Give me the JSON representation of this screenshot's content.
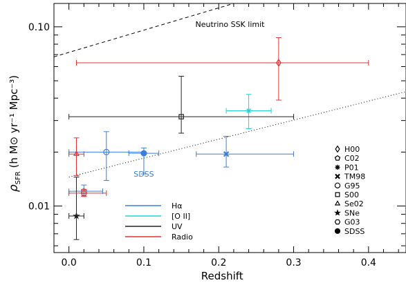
{
  "chart_data": {
    "type": "scatter",
    "xlabel": "Redshift",
    "ylabel_main": "ρ",
    "ylabel_sub": "SFR",
    "ylabel_units": " (h M⊙ yr⁻¹ Mpc⁻³)",
    "xlim": [
      -0.02,
      0.45
    ],
    "ylim": [
      0.0055,
      0.135
    ],
    "yscale": "log",
    "x_ticks": [
      {
        "value": 0.0,
        "label": "0.0"
      },
      {
        "value": 0.1,
        "label": "0.1"
      },
      {
        "value": 0.2,
        "label": "0.2"
      },
      {
        "value": 0.3,
        "label": "0.3"
      },
      {
        "value": 0.4,
        "label": "0.4"
      }
    ],
    "y_ticks": [
      {
        "value": 0.01,
        "label": "0.01"
      },
      {
        "value": 0.1,
        "label": "0.10"
      }
    ],
    "colors": {
      "Hα": "#3b7ddd",
      "[O II]": "#22d3d3",
      "UV": "#222222",
      "Radio": "#e23030"
    },
    "tracer_legend": [
      {
        "label": "Hα",
        "tracer": "Hα"
      },
      {
        "label": "[O II]",
        "tracer": "[O II]"
      },
      {
        "label": "UV",
        "tracer": "UV"
      },
      {
        "label": "Radio",
        "tracer": "Radio"
      }
    ],
    "symbol_legend": [
      {
        "label": "H00",
        "symbol": "diamond"
      },
      {
        "label": "C02",
        "symbol": "pentagon"
      },
      {
        "label": "P01",
        "symbol": "asterisk"
      },
      {
        "label": "TM98",
        "symbol": "x-cross"
      },
      {
        "label": "G95",
        "symbol": "circle"
      },
      {
        "label": "S00",
        "symbol": "square"
      },
      {
        "label": "Se02",
        "symbol": "triangle"
      },
      {
        "label": "SNe",
        "symbol": "star"
      },
      {
        "label": "G03",
        "symbol": "hexagon"
      },
      {
        "label": "SDSS",
        "symbol": "filled-circle"
      }
    ],
    "points": [
      {
        "label": "H00",
        "tracer": "Radio",
        "symbol": "diamond",
        "x": 0.28,
        "y": 0.063,
        "xerr": [
          0.01,
          0.4
        ],
        "yerr": [
          0.039,
          0.087
        ]
      },
      {
        "label": "C02",
        "tracer": "Hα",
        "symbol": "pentagon",
        "x": 0.02,
        "y": 0.0121,
        "xerr": [
          0.0,
          0.045
        ],
        "yerr": [
          0.0114,
          0.0131
        ]
      },
      {
        "label": "P01",
        "tracer": "[O II]",
        "symbol": "asterisk",
        "x": 0.24,
        "y": 0.034,
        "xerr": [
          0.21,
          0.27
        ],
        "yerr": [
          0.027,
          0.042
        ]
      },
      {
        "label": "TM98",
        "tracer": "Hα",
        "symbol": "x-cross",
        "x": 0.21,
        "y": 0.0195,
        "xerr": [
          0.17,
          0.3
        ],
        "yerr": [
          0.0165,
          0.0245
        ]
      },
      {
        "label": "G95",
        "tracer": "Hα",
        "symbol": "circle",
        "x": 0.05,
        "y": 0.02,
        "xerr": [
          0.0,
          0.1
        ],
        "yerr": [
          0.0139,
          0.026
        ]
      },
      {
        "label": "S00",
        "tracer": "UV",
        "symbol": "square",
        "x": 0.15,
        "y": 0.0315,
        "xerr": [
          0.0,
          0.3
        ],
        "yerr": [
          0.0255,
          0.053
        ]
      },
      {
        "label": "Se02",
        "tracer": "Radio",
        "symbol": "triangle",
        "x": 0.01,
        "y": 0.0195,
        "xerr": [
          0.0,
          0.02
        ],
        "yerr": [
          0.0148,
          0.024
        ]
      },
      {
        "label": "SNe",
        "tracer": "UV",
        "symbol": "star",
        "x": 0.01,
        "y": 0.0088,
        "xerr": [
          0.0,
          0.02
        ],
        "yerr": [
          0.0065,
          0.0145
        ]
      },
      {
        "label": "G03",
        "tracer": "Radio",
        "symbol": "hexagon",
        "x": 0.02,
        "y": 0.0118,
        "xerr": [
          0.0,
          0.05
        ],
        "yerr": [
          0.0113,
          0.0124
        ]
      },
      {
        "label": "SDSS",
        "tracer": "Hα",
        "symbol": "filled-circle",
        "x": 0.1,
        "y": 0.0197,
        "xerr": [
          0.08,
          0.12
        ],
        "yerr": [
          0.0151,
          0.0211
        ]
      }
    ],
    "annotations": [
      {
        "text": "Neutrino SSK limit",
        "x": 0.215,
        "y": 0.1
      },
      {
        "text": "SDSS",
        "x": 0.1,
        "y": 0.0146,
        "tracer": "Hα"
      }
    ],
    "lines": [
      {
        "name": "neutrino-ssk-limit",
        "style": "dashed",
        "x": [
          -0.02,
          0.22
        ],
        "y": [
          0.068,
          0.135
        ]
      },
      {
        "name": "dotted-fit",
        "style": "dotted",
        "x": [
          0.0,
          0.45
        ],
        "y": [
          0.0145,
          0.0435
        ]
      }
    ]
  }
}
